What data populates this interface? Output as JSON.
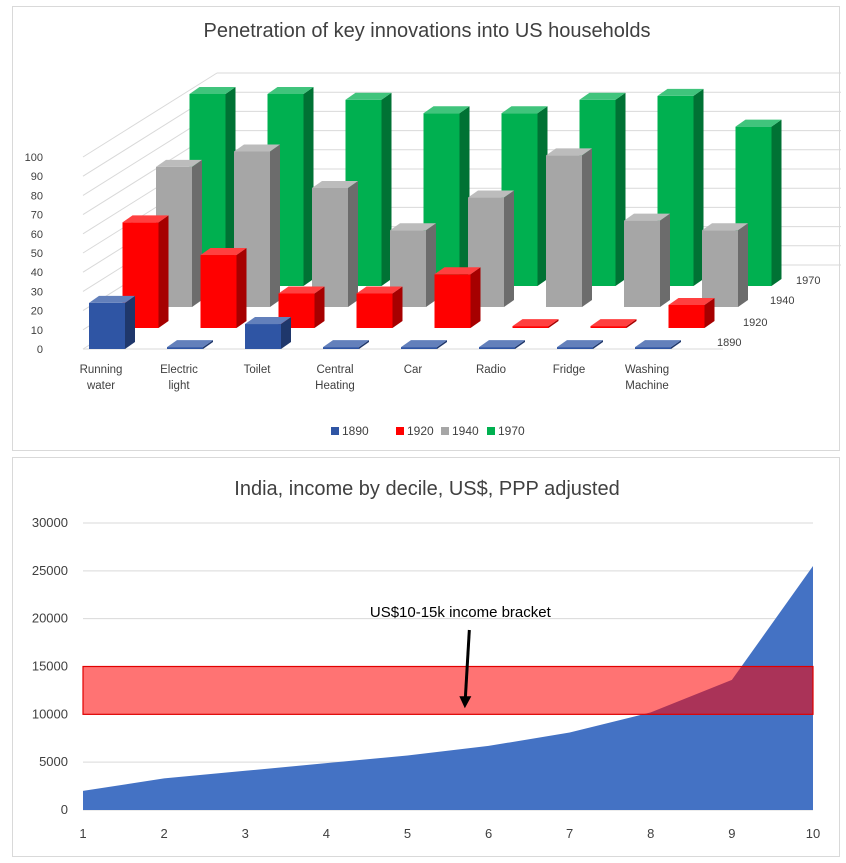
{
  "chart_data": [
    {
      "type": "bar",
      "variant": "3d-clustered-depth",
      "title": "Penetration of key innovations into US households",
      "categories": [
        [
          "Running",
          "water"
        ],
        [
          "Electric",
          "light"
        ],
        [
          "Toilet"
        ],
        [
          "Central",
          "Heating"
        ],
        [
          "Car"
        ],
        [
          "Radio"
        ],
        [
          "Fridge"
        ],
        [
          "Washing",
          "Machine"
        ]
      ],
      "series": [
        {
          "name": "1890",
          "color": "#2f55a4",
          "values": [
            24,
            1,
            13,
            1,
            1,
            1,
            1,
            1
          ]
        },
        {
          "name": "1920",
          "color": "#ff0000",
          "values": [
            55,
            38,
            18,
            18,
            28,
            1,
            1,
            12
          ]
        },
        {
          "name": "1940",
          "color": "#a6a6a6",
          "values": [
            73,
            81,
            62,
            40,
            57,
            79,
            45,
            40
          ]
        },
        {
          "name": "1970",
          "color": "#00b050",
          "values": [
            100,
            100,
            97,
            90,
            90,
            97,
            99,
            83
          ]
        }
      ],
      "ylim": [
        0,
        100
      ],
      "yticks": [
        "0",
        "10",
        "20",
        "30",
        "40",
        "50",
        "60",
        "70",
        "80",
        "90",
        "100"
      ],
      "depth_labels": [
        "1970",
        "1940",
        "1920",
        "1890"
      ],
      "legend": "bottom"
    },
    {
      "type": "area",
      "title": "India, income by decile, US$, PPP adjusted",
      "x": [
        1,
        2,
        3,
        4,
        5,
        6,
        7,
        8,
        9,
        10
      ],
      "series": [
        {
          "values": [
            2000,
            3300,
            4100,
            4900,
            5700,
            6700,
            8100,
            10200,
            13600,
            25500
          ],
          "color": "#4472c4"
        }
      ],
      "ylim": [
        0,
        30000
      ],
      "yticks": [
        "0",
        "5000",
        "10000",
        "15000",
        "20000",
        "25000",
        "30000"
      ],
      "xticks": [
        "1",
        "2",
        "3",
        "4",
        "5",
        "6",
        "7",
        "8",
        "9",
        "10"
      ],
      "band": {
        "from": 10000,
        "to": 15000,
        "color": "#ff0000"
      },
      "annotation": {
        "text": "US$10-15k income bracket",
        "x": 5.8,
        "y": 12000
      }
    }
  ]
}
